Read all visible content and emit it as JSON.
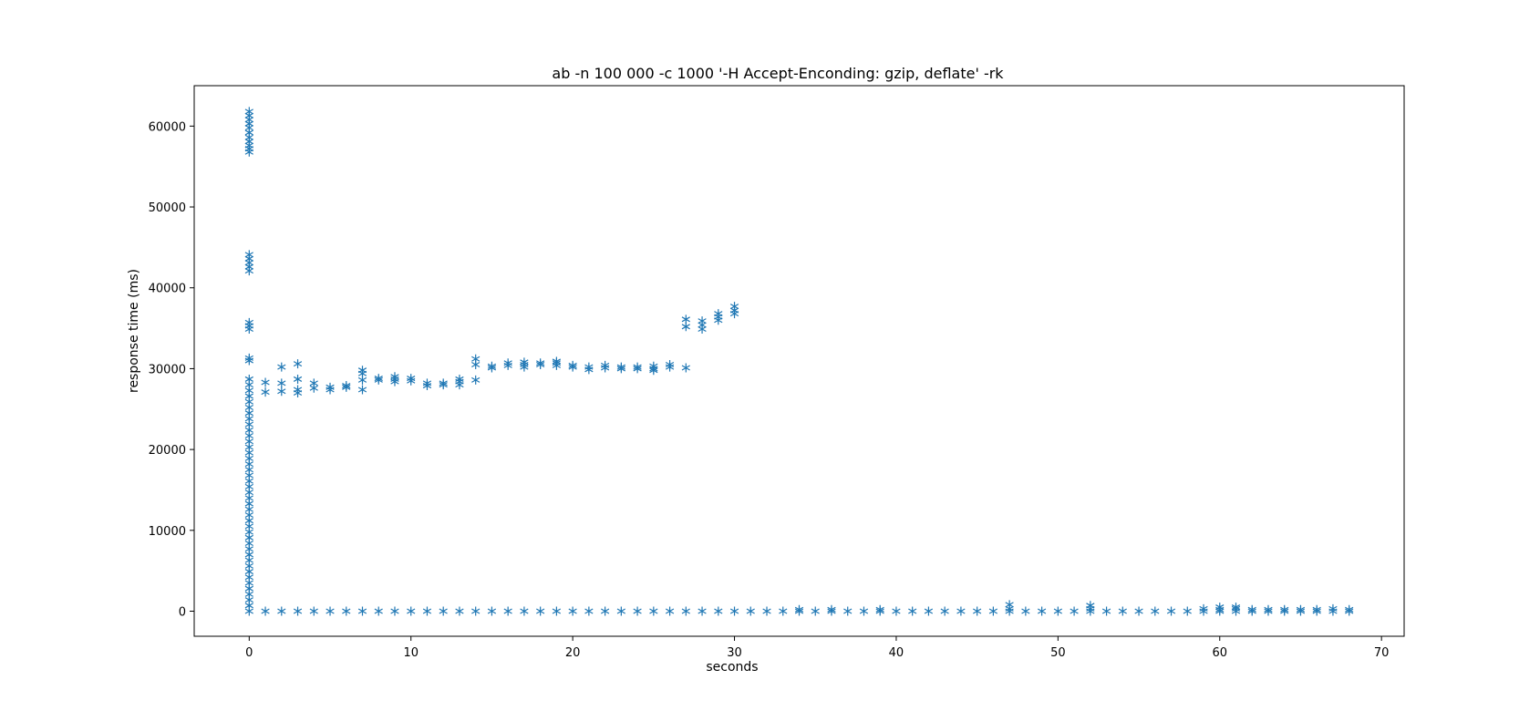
{
  "chart_data": {
    "type": "scatter",
    "title": "ab -n 100 000 -c 1000 '-H Accept-Enconding: gzip, deflate' -rk",
    "xlabel": "seconds",
    "ylabel": "response time (ms)",
    "xlim": [
      -3.4,
      71.4
    ],
    "ylim": [
      -3100,
      65000
    ],
    "xticks": [
      0,
      10,
      20,
      30,
      40,
      50,
      60,
      70
    ],
    "yticks": [
      0,
      10000,
      20000,
      30000,
      40000,
      50000,
      60000
    ],
    "xtick_labels": [
      "0",
      "10",
      "20",
      "30",
      "40",
      "50",
      "60",
      "70"
    ],
    "ytick_labels": [
      "0",
      "10000",
      "20000",
      "30000",
      "40000",
      "50000",
      "60000"
    ],
    "marker": "*",
    "color": "#1f77b4",
    "grid": false,
    "series": [
      {
        "points": [
          [
            0,
            0
          ],
          [
            0,
            61800
          ],
          [
            0,
            61300
          ],
          [
            0,
            60800
          ],
          [
            0,
            60300
          ],
          [
            0,
            59800
          ],
          [
            0,
            59200
          ],
          [
            0,
            58600
          ],
          [
            0,
            58100
          ],
          [
            0,
            57600
          ],
          [
            0,
            57200
          ],
          [
            0,
            56800
          ],
          [
            0,
            44100
          ],
          [
            0,
            43600
          ],
          [
            0,
            43100
          ],
          [
            0,
            42600
          ],
          [
            0,
            42100
          ],
          [
            0,
            35700
          ],
          [
            0,
            35300
          ],
          [
            0,
            34900
          ],
          [
            0,
            31300
          ],
          [
            0,
            31000
          ],
          [
            0,
            28700
          ],
          [
            0,
            28000
          ],
          [
            0,
            27300
          ],
          [
            0,
            26600
          ],
          [
            0,
            25900
          ],
          [
            0,
            25200
          ],
          [
            0,
            24500
          ],
          [
            0,
            23800
          ],
          [
            0,
            23100
          ],
          [
            0,
            22400
          ],
          [
            0,
            21700
          ],
          [
            0,
            21000
          ],
          [
            0,
            20300
          ],
          [
            0,
            19600
          ],
          [
            0,
            18900
          ],
          [
            0,
            18200
          ],
          [
            0,
            17500
          ],
          [
            0,
            16800
          ],
          [
            0,
            16100
          ],
          [
            0,
            15400
          ],
          [
            0,
            14700
          ],
          [
            0,
            14000
          ],
          [
            0,
            13300
          ],
          [
            0,
            12600
          ],
          [
            0,
            11900
          ],
          [
            0,
            11200
          ],
          [
            0,
            10500
          ],
          [
            0,
            9800
          ],
          [
            0,
            9100
          ],
          [
            0,
            8400
          ],
          [
            0,
            7700
          ],
          [
            0,
            7000
          ],
          [
            0,
            6300
          ],
          [
            0,
            5600
          ],
          [
            0,
            4900
          ],
          [
            0,
            4200
          ],
          [
            0,
            3500
          ],
          [
            0,
            2800
          ],
          [
            0,
            2100
          ],
          [
            0,
            1400
          ],
          [
            0,
            700
          ],
          [
            1,
            27100
          ],
          [
            1,
            28300
          ],
          [
            1,
            0
          ],
          [
            2,
            27200
          ],
          [
            2,
            28200
          ],
          [
            2,
            30200
          ],
          [
            2,
            0
          ],
          [
            3,
            27000
          ],
          [
            3,
            27400
          ],
          [
            3,
            28700
          ],
          [
            3,
            30600
          ],
          [
            3,
            0
          ],
          [
            4,
            27600
          ],
          [
            4,
            28200
          ],
          [
            4,
            0
          ],
          [
            5,
            27400
          ],
          [
            5,
            27700
          ],
          [
            5,
            0
          ],
          [
            6,
            27700
          ],
          [
            6,
            27900
          ],
          [
            6,
            0
          ],
          [
            7,
            27400
          ],
          [
            7,
            28600
          ],
          [
            7,
            29400
          ],
          [
            7,
            29800
          ],
          [
            7,
            0
          ],
          [
            8,
            28600
          ],
          [
            8,
            28800
          ],
          [
            8,
            0
          ],
          [
            9,
            28400
          ],
          [
            9,
            28700
          ],
          [
            9,
            29000
          ],
          [
            9,
            0
          ],
          [
            10,
            28500
          ],
          [
            10,
            28800
          ],
          [
            10,
            0
          ],
          [
            11,
            27900
          ],
          [
            11,
            28200
          ],
          [
            11,
            0
          ],
          [
            12,
            28000
          ],
          [
            12,
            28200
          ],
          [
            12,
            0
          ],
          [
            13,
            28000
          ],
          [
            13,
            28400
          ],
          [
            13,
            28700
          ],
          [
            13,
            0
          ],
          [
            14,
            28600
          ],
          [
            14,
            30500
          ],
          [
            14,
            31200
          ],
          [
            14,
            0
          ],
          [
            15,
            30100
          ],
          [
            15,
            30300
          ],
          [
            15,
            0
          ],
          [
            16,
            30400
          ],
          [
            16,
            30700
          ],
          [
            16,
            0
          ],
          [
            17,
            30200
          ],
          [
            17,
            30500
          ],
          [
            17,
            30800
          ],
          [
            17,
            0
          ],
          [
            18,
            30500
          ],
          [
            18,
            30700
          ],
          [
            18,
            0
          ],
          [
            19,
            30400
          ],
          [
            19,
            30700
          ],
          [
            19,
            30900
          ],
          [
            19,
            0
          ],
          [
            20,
            30200
          ],
          [
            20,
            30400
          ],
          [
            20,
            0
          ],
          [
            21,
            29900
          ],
          [
            21,
            30200
          ],
          [
            21,
            0
          ],
          [
            22,
            30100
          ],
          [
            22,
            30400
          ],
          [
            22,
            0
          ],
          [
            23,
            30000
          ],
          [
            23,
            30200
          ],
          [
            23,
            0
          ],
          [
            24,
            30000
          ],
          [
            24,
            30200
          ],
          [
            24,
            0
          ],
          [
            25,
            29800
          ],
          [
            25,
            30000
          ],
          [
            25,
            30300
          ],
          [
            25,
            0
          ],
          [
            26,
            30200
          ],
          [
            26,
            30500
          ],
          [
            26,
            0
          ],
          [
            27,
            30100
          ],
          [
            27,
            35200
          ],
          [
            27,
            36100
          ],
          [
            27,
            0
          ],
          [
            28,
            34900
          ],
          [
            28,
            35400
          ],
          [
            28,
            35900
          ],
          [
            28,
            0
          ],
          [
            29,
            36000
          ],
          [
            29,
            36400
          ],
          [
            29,
            36800
          ],
          [
            29,
            0
          ],
          [
            30,
            36800
          ],
          [
            30,
            37200
          ],
          [
            30,
            37700
          ],
          [
            30,
            0
          ],
          [
            31,
            0
          ],
          [
            32,
            0
          ],
          [
            33,
            0
          ],
          [
            34,
            0
          ],
          [
            34,
            200
          ],
          [
            35,
            0
          ],
          [
            36,
            0
          ],
          [
            36,
            200
          ],
          [
            37,
            0
          ],
          [
            38,
            0
          ],
          [
            39,
            0
          ],
          [
            39,
            200
          ],
          [
            40,
            0
          ],
          [
            41,
            0
          ],
          [
            42,
            0
          ],
          [
            43,
            0
          ],
          [
            44,
            0
          ],
          [
            45,
            0
          ],
          [
            46,
            0
          ],
          [
            47,
            0
          ],
          [
            47,
            300
          ],
          [
            47,
            800
          ],
          [
            48,
            0
          ],
          [
            49,
            0
          ],
          [
            50,
            0
          ],
          [
            51,
            0
          ],
          [
            52,
            0
          ],
          [
            52,
            300
          ],
          [
            52,
            700
          ],
          [
            53,
            0
          ],
          [
            54,
            0
          ],
          [
            55,
            0
          ],
          [
            56,
            0
          ],
          [
            57,
            0
          ],
          [
            58,
            0
          ],
          [
            59,
            0
          ],
          [
            59,
            300
          ],
          [
            60,
            0
          ],
          [
            60,
            200
          ],
          [
            60,
            500
          ],
          [
            61,
            0
          ],
          [
            61,
            300
          ],
          [
            61,
            500
          ],
          [
            62,
            0
          ],
          [
            62,
            200
          ],
          [
            63,
            0
          ],
          [
            63,
            200
          ],
          [
            64,
            0
          ],
          [
            64,
            200
          ],
          [
            65,
            0
          ],
          [
            65,
            200
          ],
          [
            66,
            0
          ],
          [
            66,
            200
          ],
          [
            67,
            0
          ],
          [
            67,
            300
          ],
          [
            68,
            0
          ],
          [
            68,
            200
          ]
        ]
      }
    ]
  }
}
